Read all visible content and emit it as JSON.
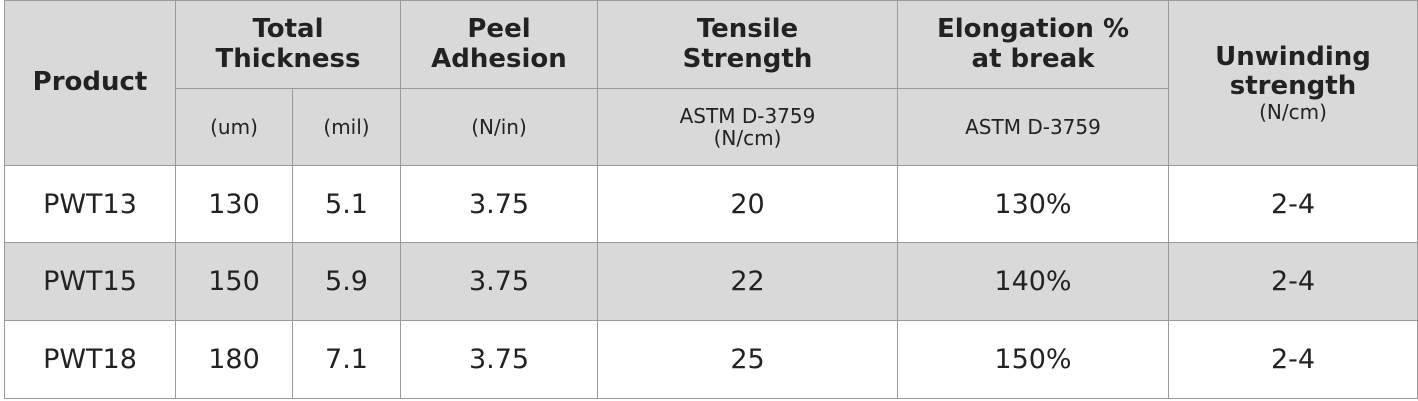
{
  "table": {
    "headers": {
      "product": "Product",
      "total_thickness": "Total Thickness",
      "peel_adhesion": "Peel Adhesion",
      "tensile_strength": "Tensile Strength",
      "elongation": "Elongation % at break",
      "unwinding_strength": "Unwinding strength",
      "unwinding_unit": "(N/cm)"
    },
    "subheaders": {
      "thickness_um": "(um)",
      "thickness_mil": "(mil)",
      "peel_unit": "(N/in)",
      "tensile_method": "ASTM D-3759",
      "tensile_unit": "(N/cm)",
      "elongation_method": "ASTM D-3759"
    },
    "rows": [
      [
        "PWT13",
        "130",
        "5.1",
        "3.75",
        "20",
        "130%",
        "2-4"
      ],
      [
        "PWT15",
        "150",
        "5.9",
        "3.75",
        "22",
        "140%",
        "2-4"
      ],
      [
        "PWT18",
        "180",
        "7.1",
        "3.75",
        "25",
        "150%",
        "2-4"
      ]
    ]
  }
}
